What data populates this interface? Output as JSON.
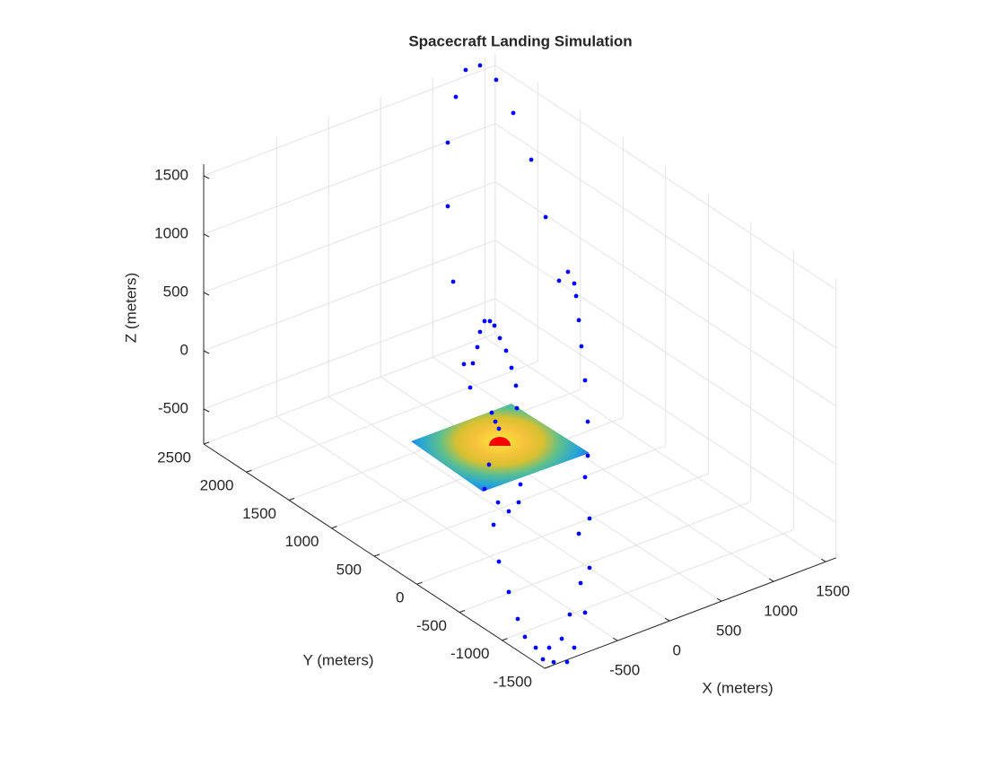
{
  "chart_data": {
    "type": "scatter3",
    "title": "Spacecraft Landing Simulation",
    "xlabel": "X (meters)",
    "ylabel": "Y (meters)",
    "zlabel": "Z (meters)",
    "xlim": [
      -1200,
      1600
    ],
    "ylim": [
      -1500,
      2500
    ],
    "zlim": [
      -800,
      1600
    ],
    "xticks": [
      -500,
      0,
      500,
      1000,
      1500
    ],
    "yticks": [
      -1500,
      -1000,
      -500,
      0,
      500,
      1000,
      1500,
      2000,
      2500
    ],
    "zticks": [
      -500,
      0,
      500,
      1000,
      1500
    ],
    "grid": true,
    "color": "#0000ff",
    "x": [
      -321,
      -183,
      -28,
      136,
      309,
      447,
      576,
      662,
      722,
      740,
      766,
      791,
      826,
      852,
      -416,
      -493,
      -493,
      -441,
      -338,
      -278,
      -252,
      -209,
      -183,
      -140,
      -88,
      -45,
      7,
      67,
      119,
      162,
      171,
      -71,
      -36,
      -2,
      -97,
      -140,
      -10,
      93,
      188,
      205,
      -53,
      -2,
      93,
      179,
      248,
      352,
      421,
      481,
      524,
      653,
      722,
      602,
      679,
      826,
      783,
      869,
      766,
      869,
      826,
      852
    ],
    "y": [
      500,
      500,
      500,
      500,
      500,
      500,
      500,
      500,
      500,
      500,
      500,
      500,
      500,
      500,
      500,
      500,
      500,
      500,
      500,
      500,
      500,
      500,
      500,
      500,
      500,
      500,
      500,
      500,
      500,
      500,
      500,
      500,
      500,
      500,
      500,
      500,
      500,
      500,
      500,
      500,
      500,
      500,
      500,
      500,
      500,
      500,
      500,
      500,
      500,
      500,
      500,
      500,
      500,
      500,
      500,
      500,
      500,
      500,
      500,
      500
    ],
    "z": [
      3072,
      3064,
      2888,
      2548,
      2089,
      1550,
      961,
      1008,
      888,
      774,
      558,
      326,
      22,
      -341,
      2873,
      2507,
      1961,
      1297,
      555,
      334,
      533,
      657,
      779,
      857,
      839,
      786,
      661,
      533,
      369,
      201,
      5,
      48,
      -40,
      -113,
      -388,
      -582,
      -742,
      -853,
      -808,
      -660,
      -919,
      -1252,
      -1545,
      -1805,
      -1982,
      -2110,
      -2233,
      -2154,
      -2292,
      -2335,
      -2235,
      -2118,
      -1936,
      -1970,
      -1702,
      -1600,
      -1273,
      -1177,
      -808,
      -633
    ]
  }
}
